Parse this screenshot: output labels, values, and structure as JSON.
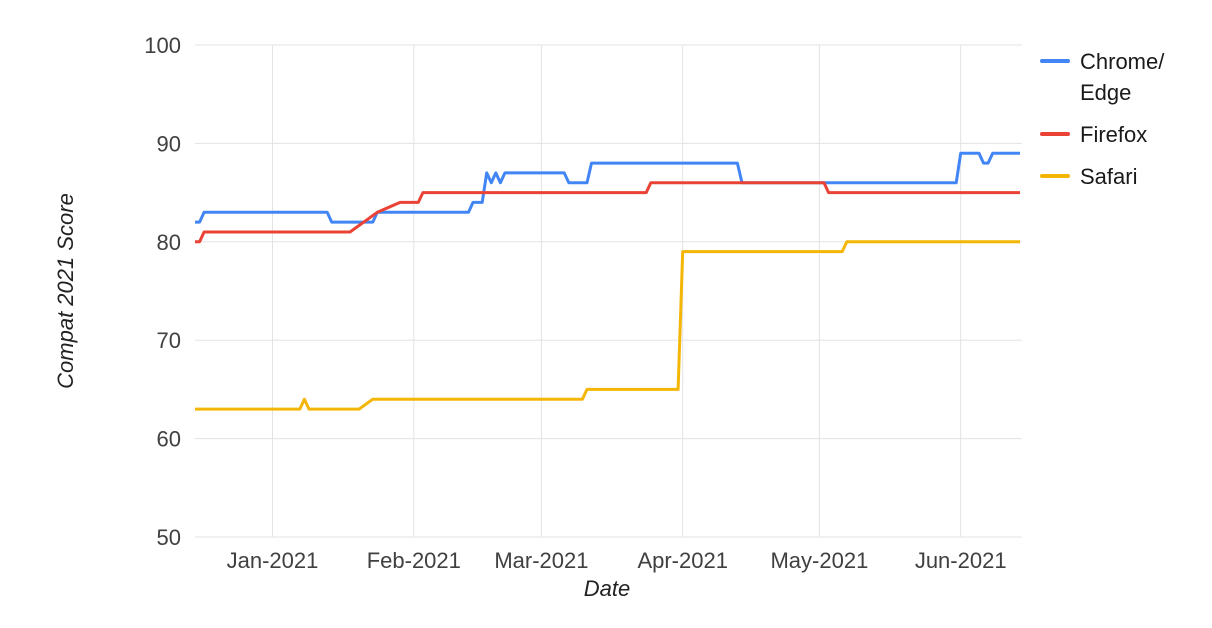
{
  "chart_data": {
    "type": "line",
    "title": "",
    "xlabel": "Date",
    "ylabel": "Compat 2021 Score",
    "ylim": [
      50,
      100
    ],
    "yticks": [
      50,
      60,
      70,
      80,
      90,
      100
    ],
    "x_range": [
      "2020-12-15",
      "2021-06-14"
    ],
    "xticks": [
      {
        "label": "Jan-2021",
        "date": "2021-01-01"
      },
      {
        "label": "Feb-2021",
        "date": "2021-02-01"
      },
      {
        "label": "Mar-2021",
        "date": "2021-03-01"
      },
      {
        "label": "Apr-2021",
        "date": "2021-04-01"
      },
      {
        "label": "May-2021",
        "date": "2021-05-01"
      },
      {
        "label": "Jun-2021",
        "date": "2021-06-01"
      }
    ],
    "grid": true,
    "grid_color": "#e3e3e3",
    "tick_text_color": "#404040",
    "legend_position": "right",
    "series": [
      {
        "name": "Chrome/Edge",
        "legend_lines": [
          "Chrome/",
          "Edge"
        ],
        "color": "#4285F4",
        "points": [
          [
            "2020-12-15",
            82
          ],
          [
            "2020-12-16",
            82
          ],
          [
            "2020-12-17",
            83
          ],
          [
            "2021-01-13",
            83
          ],
          [
            "2021-01-14",
            82
          ],
          [
            "2021-01-23",
            82
          ],
          [
            "2021-01-24",
            83
          ],
          [
            "2021-02-13",
            83
          ],
          [
            "2021-02-14",
            84
          ],
          [
            "2021-02-16",
            84
          ],
          [
            "2021-02-17",
            87
          ],
          [
            "2021-02-18",
            86
          ],
          [
            "2021-02-19",
            87
          ],
          [
            "2021-02-20",
            86
          ],
          [
            "2021-02-21",
            87
          ],
          [
            "2021-03-06",
            87
          ],
          [
            "2021-03-07",
            86
          ],
          [
            "2021-03-11",
            86
          ],
          [
            "2021-03-12",
            88
          ],
          [
            "2021-04-13",
            88
          ],
          [
            "2021-04-14",
            86
          ],
          [
            "2021-05-31",
            86
          ],
          [
            "2021-06-01",
            89
          ],
          [
            "2021-06-05",
            89
          ],
          [
            "2021-06-06",
            88
          ],
          [
            "2021-06-07",
            88
          ],
          [
            "2021-06-08",
            89
          ],
          [
            "2021-06-14",
            89
          ]
        ]
      },
      {
        "name": "Firefox",
        "legend_lines": [
          "Firefox"
        ],
        "color": "#EA4335",
        "points": [
          [
            "2020-12-15",
            80
          ],
          [
            "2020-12-16",
            80
          ],
          [
            "2020-12-17",
            81
          ],
          [
            "2021-01-18",
            81
          ],
          [
            "2021-01-24",
            83
          ],
          [
            "2021-01-29",
            84
          ],
          [
            "2021-02-02",
            84
          ],
          [
            "2021-02-03",
            85
          ],
          [
            "2021-03-24",
            85
          ],
          [
            "2021-03-25",
            86
          ],
          [
            "2021-05-02",
            86
          ],
          [
            "2021-05-03",
            85
          ],
          [
            "2021-06-14",
            85
          ]
        ]
      },
      {
        "name": "Safari",
        "legend_lines": [
          "Safari"
        ],
        "color": "#F4B606",
        "points": [
          [
            "2020-12-15",
            63
          ],
          [
            "2021-01-07",
            63
          ],
          [
            "2021-01-08",
            64
          ],
          [
            "2021-01-09",
            63
          ],
          [
            "2021-01-20",
            63
          ],
          [
            "2021-01-23",
            64
          ],
          [
            "2021-03-10",
            64
          ],
          [
            "2021-03-11",
            65
          ],
          [
            "2021-03-31",
            65
          ],
          [
            "2021-04-01",
            79
          ],
          [
            "2021-05-06",
            79
          ],
          [
            "2021-05-07",
            80
          ],
          [
            "2021-06-14",
            80
          ]
        ]
      }
    ]
  }
}
